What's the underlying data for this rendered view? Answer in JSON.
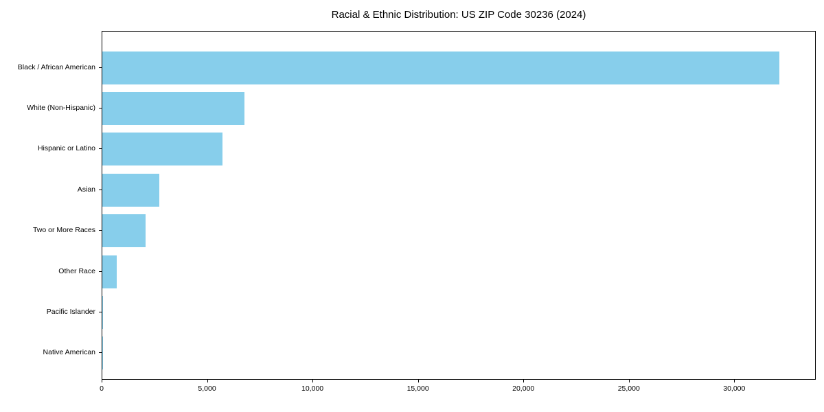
{
  "chart_data": {
    "type": "bar",
    "orientation": "horizontal",
    "title": "Racial & Ethnic Distribution: US ZIP Code 30236 (2024)",
    "categories": [
      "Black / African American",
      "White (Non-Hispanic)",
      "Hispanic or Latino",
      "Asian",
      "Two or More Races",
      "Other Race",
      "Pacific Islander",
      "Native American"
    ],
    "values": [
      32100,
      6750,
      5700,
      2700,
      2050,
      700,
      30,
      10
    ],
    "xlabel": "",
    "ylabel": "",
    "xlim": [
      0,
      33800
    ],
    "xticks": [
      0,
      5000,
      10000,
      15000,
      20000,
      25000,
      30000
    ],
    "xtick_labels": [
      "0",
      "5,000",
      "10,000",
      "15,000",
      "20,000",
      "25,000",
      "30,000"
    ],
    "grid": false,
    "legend": null,
    "bar_color": "#87CEEB",
    "text_color": "#000000",
    "background_color": "#ffffff"
  }
}
